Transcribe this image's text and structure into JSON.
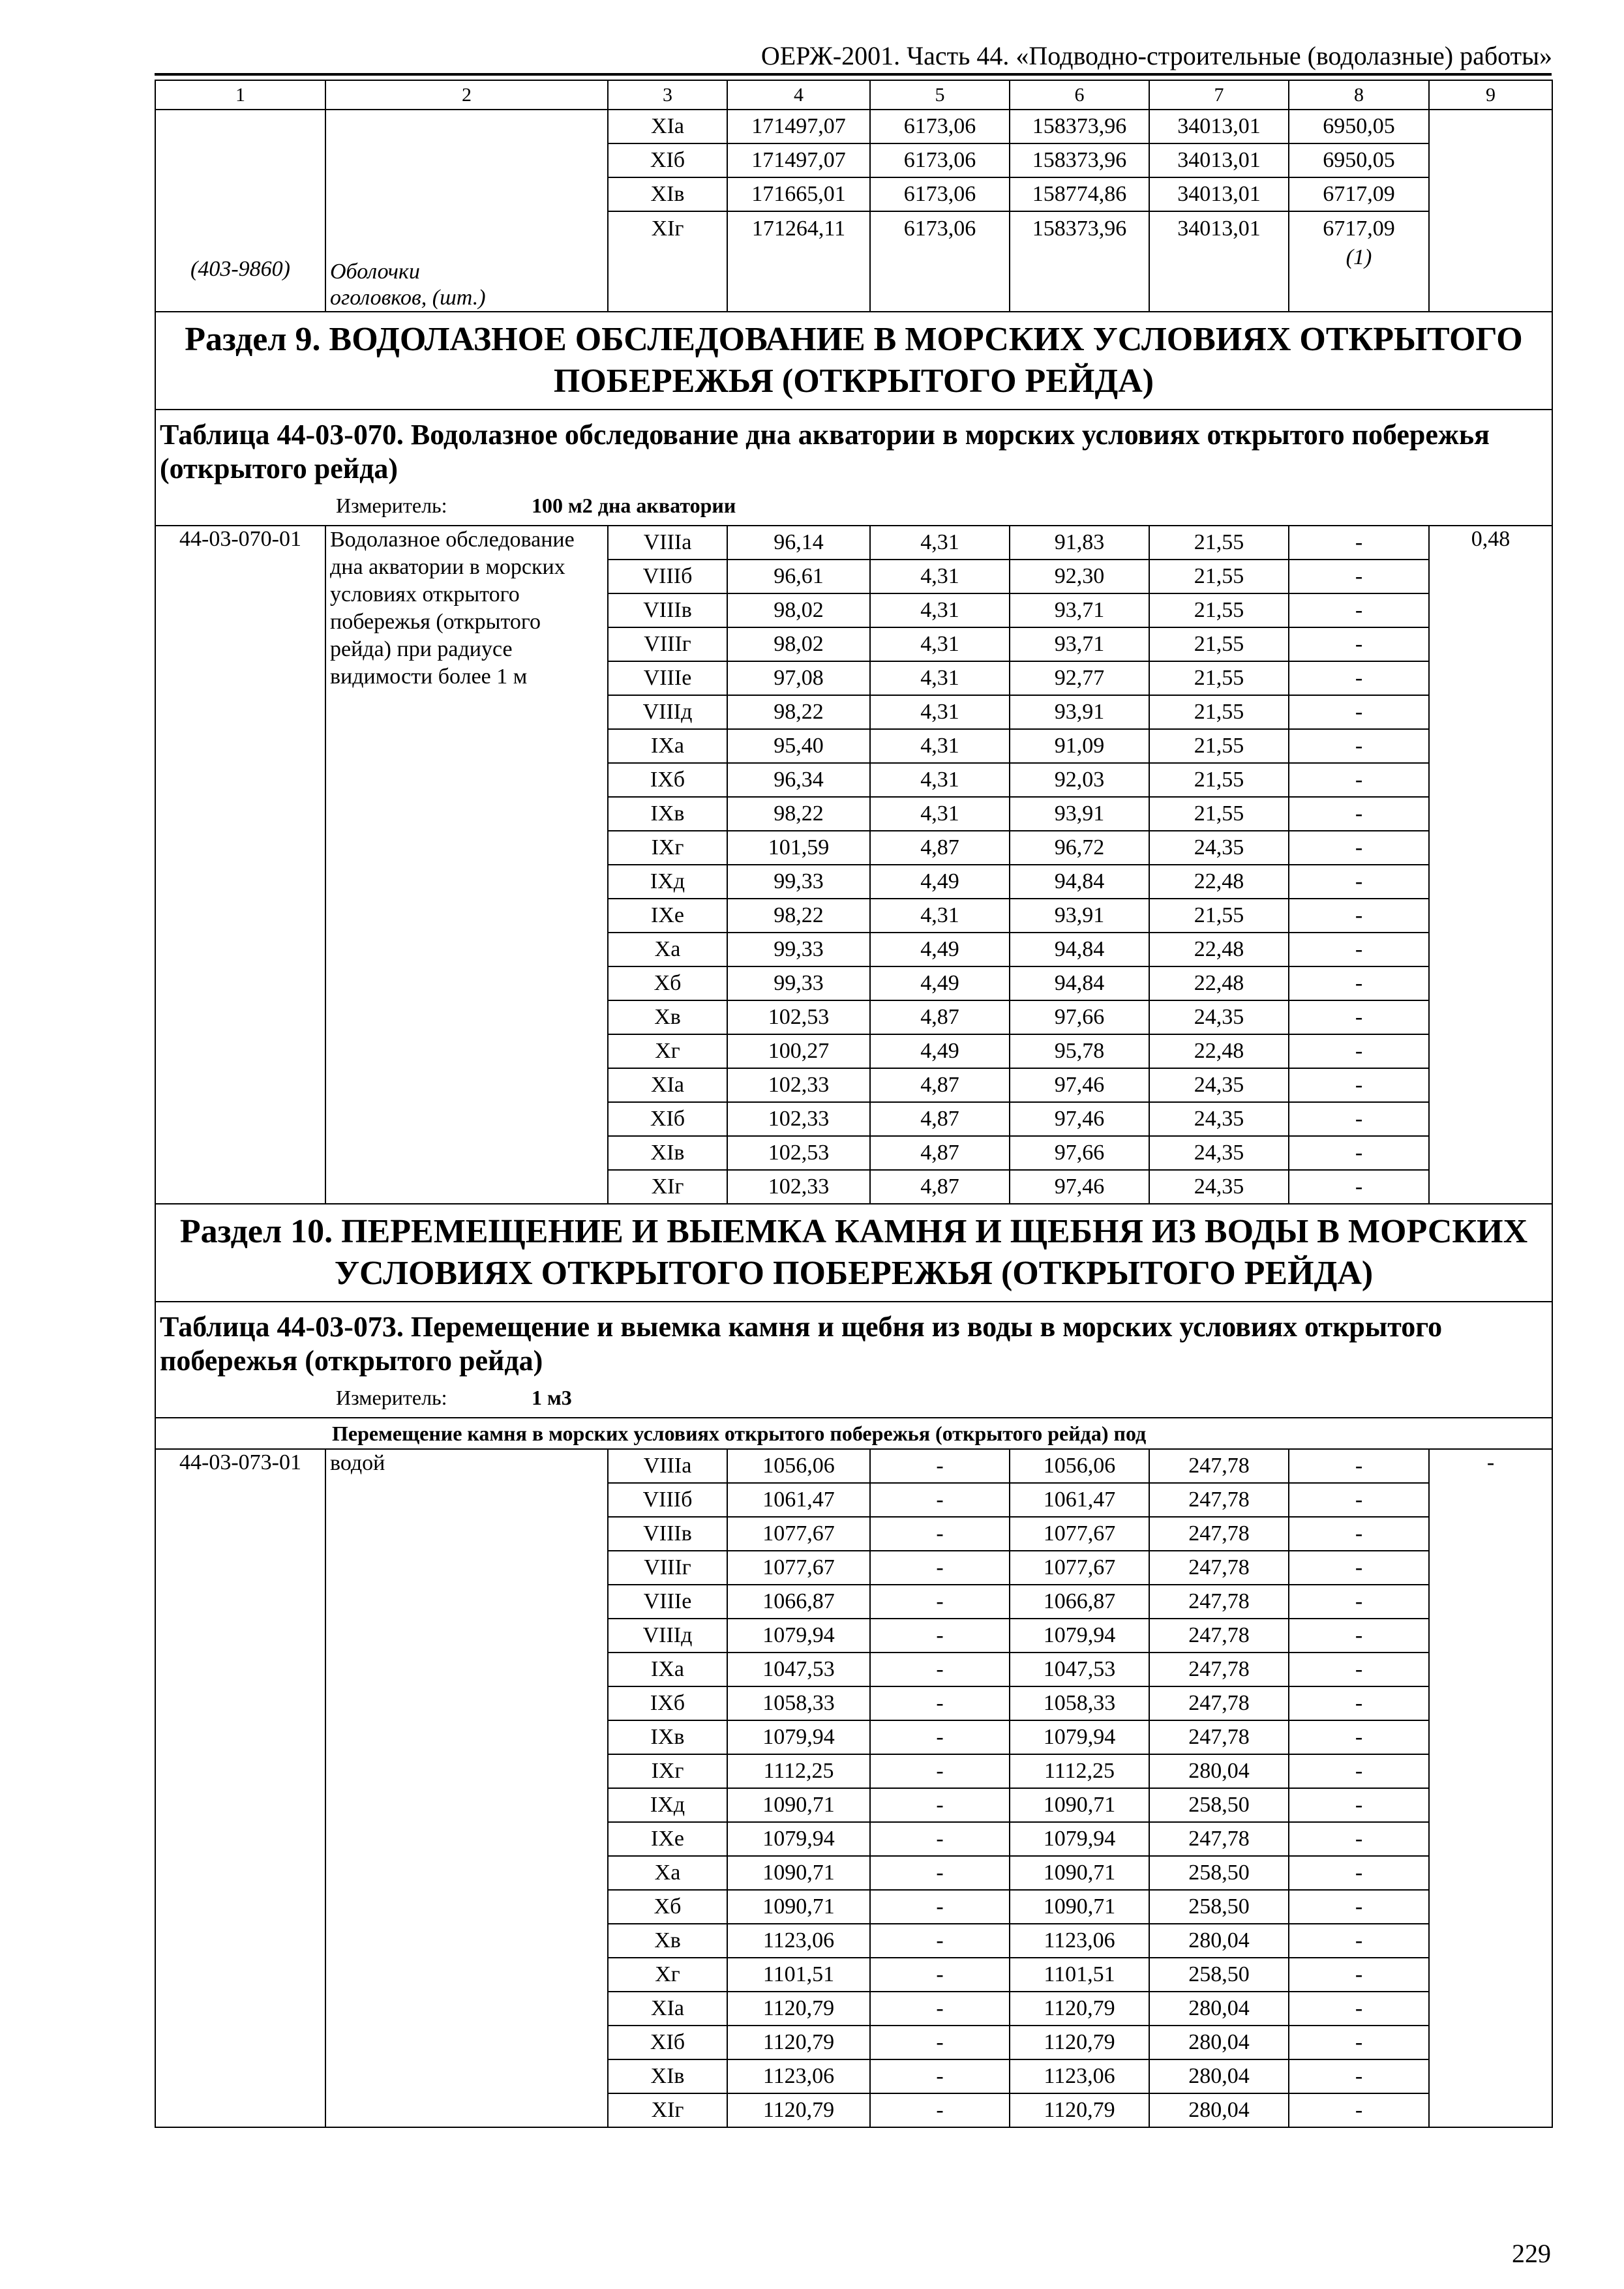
{
  "running_head": "ОЕРЖ-2001. Часть 44. «Подводно-строительные (водолазные) работы»",
  "page_number": "229",
  "column_numbers": [
    "1",
    "2",
    "3",
    "4",
    "5",
    "6",
    "7",
    "8",
    "9"
  ],
  "top_block": {
    "code": "(403-9860)",
    "name": "Оболочки оголовков, (шт.)",
    "note8": "(1)",
    "rows": [
      [
        "XIа",
        "171497,07",
        "6173,06",
        "158373,96",
        "34013,01",
        "6950,05"
      ],
      [
        "XIб",
        "171497,07",
        "6173,06",
        "158373,96",
        "34013,01",
        "6950,05"
      ],
      [
        "XIв",
        "171665,01",
        "6173,06",
        "158774,86",
        "34013,01",
        "6717,09"
      ],
      [
        "XIг",
        "171264,11",
        "6173,06",
        "158373,96",
        "34013,01",
        "6717,09"
      ]
    ]
  },
  "section9": {
    "title": "Раздел 9. ВОДОЛАЗНОЕ ОБСЛЕДОВАНИЕ В МОРСКИХ УСЛОВИЯХ ОТКРЫТОГО ПОБЕРЕЖЬЯ (ОТКРЫТОГО РЕЙДА)",
    "table_title": "Таблица 44-03-070. Водолазное обследование дна акватории в морских условиях открытого побережья (открытого рейда)",
    "meter_label": "Измеритель:",
    "meter_value": "100 м2 дна акватории",
    "code": "44-03-070-01",
    "name": "Водолазное обследование дна акватории в морских условиях открытого побережья (открытого рейда) при радиусе видимости более 1 м",
    "col9": "0,48",
    "rows": [
      [
        "VIIIа",
        "96,14",
        "4,31",
        "91,83",
        "21,55",
        "-"
      ],
      [
        "VIIIб",
        "96,61",
        "4,31",
        "92,30",
        "21,55",
        "-"
      ],
      [
        "VIIIв",
        "98,02",
        "4,31",
        "93,71",
        "21,55",
        "-"
      ],
      [
        "VIIIг",
        "98,02",
        "4,31",
        "93,71",
        "21,55",
        "-"
      ],
      [
        "VIIIе",
        "97,08",
        "4,31",
        "92,77",
        "21,55",
        "-"
      ],
      [
        "VIIIд",
        "98,22",
        "4,31",
        "93,91",
        "21,55",
        "-"
      ],
      [
        "IXа",
        "95,40",
        "4,31",
        "91,09",
        "21,55",
        "-"
      ],
      [
        "IXб",
        "96,34",
        "4,31",
        "92,03",
        "21,55",
        "-"
      ],
      [
        "IXв",
        "98,22",
        "4,31",
        "93,91",
        "21,55",
        "-"
      ],
      [
        "IXг",
        "101,59",
        "4,87",
        "96,72",
        "24,35",
        "-"
      ],
      [
        "IXд",
        "99,33",
        "4,49",
        "94,84",
        "22,48",
        "-"
      ],
      [
        "IXе",
        "98,22",
        "4,31",
        "93,91",
        "21,55",
        "-"
      ],
      [
        "Xа",
        "99,33",
        "4,49",
        "94,84",
        "22,48",
        "-"
      ],
      [
        "Xб",
        "99,33",
        "4,49",
        "94,84",
        "22,48",
        "-"
      ],
      [
        "Xв",
        "102,53",
        "4,87",
        "97,66",
        "24,35",
        "-"
      ],
      [
        "Xг",
        "100,27",
        "4,49",
        "95,78",
        "22,48",
        "-"
      ],
      [
        "XIа",
        "102,33",
        "4,87",
        "97,46",
        "24,35",
        "-"
      ],
      [
        "XIб",
        "102,33",
        "4,87",
        "97,46",
        "24,35",
        "-"
      ],
      [
        "XIв",
        "102,53",
        "4,87",
        "97,66",
        "24,35",
        "-"
      ],
      [
        "XIг",
        "102,33",
        "4,87",
        "97,46",
        "24,35",
        "-"
      ]
    ]
  },
  "section10": {
    "title": "Раздел 10. ПЕРЕМЕЩЕНИЕ И ВЫЕМКА КАМНЯ И ЩЕБНЯ ИЗ ВОДЫ В МОРСКИХ УСЛОВИЯХ ОТКРЫТОГО ПОБЕРЕЖЬЯ (ОТКРЫТОГО РЕЙДА)",
    "table_title": "Таблица 44-03-073. Перемещение и выемка камня и щебня из воды в морских условиях открытого побережья (открытого рейда)",
    "meter_label": "Измеритель:",
    "meter_value": "1 м3",
    "subheading": "Перемещение камня в морских условиях открытого побережья (открытого рейда) под",
    "code": "44-03-073-01",
    "name": "водой",
    "col9": "-",
    "rows": [
      [
        "VIIIа",
        "1056,06",
        "-",
        "1056,06",
        "247,78",
        "-"
      ],
      [
        "VIIIб",
        "1061,47",
        "-",
        "1061,47",
        "247,78",
        "-"
      ],
      [
        "VIIIв",
        "1077,67",
        "-",
        "1077,67",
        "247,78",
        "-"
      ],
      [
        "VIIIг",
        "1077,67",
        "-",
        "1077,67",
        "247,78",
        "-"
      ],
      [
        "VIIIе",
        "1066,87",
        "-",
        "1066,87",
        "247,78",
        "-"
      ],
      [
        "VIIIд",
        "1079,94",
        "-",
        "1079,94",
        "247,78",
        "-"
      ],
      [
        "IXа",
        "1047,53",
        "-",
        "1047,53",
        "247,78",
        "-"
      ],
      [
        "IXб",
        "1058,33",
        "-",
        "1058,33",
        "247,78",
        "-"
      ],
      [
        "IXв",
        "1079,94",
        "-",
        "1079,94",
        "247,78",
        "-"
      ],
      [
        "IXг",
        "1112,25",
        "-",
        "1112,25",
        "280,04",
        "-"
      ],
      [
        "IXд",
        "1090,71",
        "-",
        "1090,71",
        "258,50",
        "-"
      ],
      [
        "IXе",
        "1079,94",
        "-",
        "1079,94",
        "247,78",
        "-"
      ],
      [
        "Xа",
        "1090,71",
        "-",
        "1090,71",
        "258,50",
        "-"
      ],
      [
        "Xб",
        "1090,71",
        "-",
        "1090,71",
        "258,50",
        "-"
      ],
      [
        "Xв",
        "1123,06",
        "-",
        "1123,06",
        "280,04",
        "-"
      ],
      [
        "Xг",
        "1101,51",
        "-",
        "1101,51",
        "258,50",
        "-"
      ],
      [
        "XIа",
        "1120,79",
        "-",
        "1120,79",
        "280,04",
        "-"
      ],
      [
        "XIб",
        "1120,79",
        "-",
        "1120,79",
        "280,04",
        "-"
      ],
      [
        "XIв",
        "1123,06",
        "-",
        "1123,06",
        "280,04",
        "-"
      ],
      [
        "XIг",
        "1120,79",
        "-",
        "1120,79",
        "280,04",
        "-"
      ]
    ]
  }
}
